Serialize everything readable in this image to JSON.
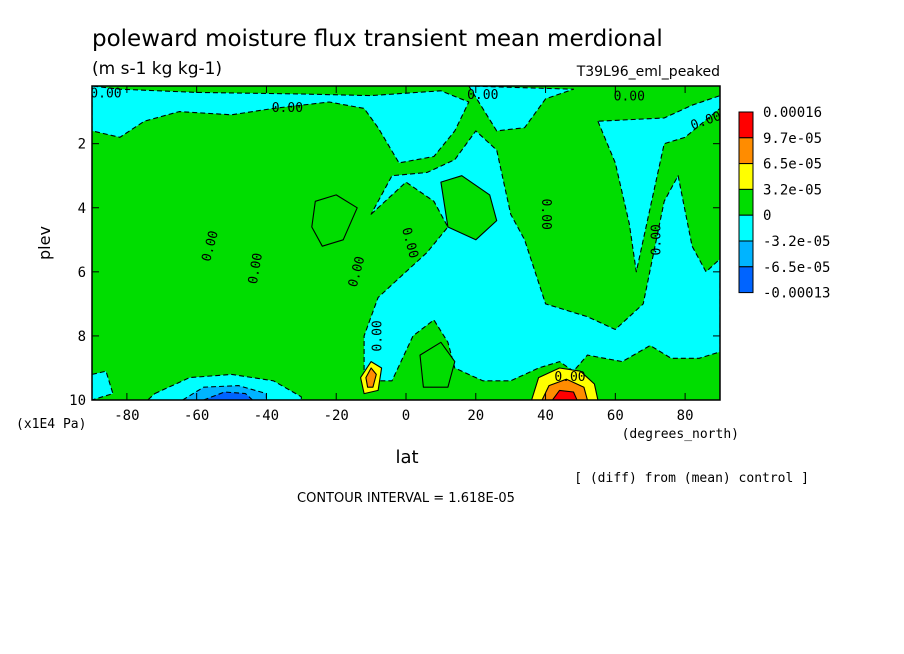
{
  "chart_data": {
    "type": "heatmap",
    "title": "poleward moisture flux transient mean merdional",
    "units": "(m s-1 kg kg-1)",
    "run_label": "T39L96_eml_peaked",
    "xlabel": "lat",
    "x_unit": "(degrees_north)",
    "ylabel": "plev",
    "y_unit": "(x1E4 Pa)",
    "xlim": [
      -90,
      90
    ],
    "ylim": [
      10,
      0.2
    ],
    "x_ticks": [
      -80,
      -60,
      -40,
      -20,
      0,
      20,
      40,
      60,
      80
    ],
    "x_tick_labels": [
      "-80",
      "-60",
      "-40",
      "-20",
      "0",
      "20",
      "40",
      "60",
      "80"
    ],
    "y_ticks": [
      2,
      4,
      6,
      8,
      10
    ],
    "y_tick_labels": [
      "2",
      "4",
      "6",
      "8",
      "10"
    ],
    "contour_label": "0.00",
    "colorbar": {
      "labels": [
        "0.00016",
        "9.7e-05",
        "6.5e-05",
        "3.2e-05",
        "0",
        "-3.2e-05",
        "-6.5e-05",
        "-0.00013"
      ],
      "colors": [
        "#ff0000",
        "#ff8c00",
        "#ffff00",
        "#00dd00",
        "#00ffff",
        "#00b4ff",
        "#0064ff"
      ]
    },
    "footnote": "[ (diff) from (mean) control ]",
    "contour_interval_text": "CONTOUR INTERVAL = 1.618E-05",
    "regions": [
      {
        "level": "pos1",
        "points": [
          [
            -90,
            0.2
          ],
          [
            90,
            0.2
          ],
          [
            90,
            10
          ],
          [
            -90,
            10
          ]
        ]
      },
      {
        "level": "neg1",
        "points": [
          [
            -90,
            0.2
          ],
          [
            -90,
            1.6
          ],
          [
            -82,
            1.8
          ],
          [
            -75,
            1.3
          ],
          [
            -65,
            1.0
          ],
          [
            -50,
            1.1
          ],
          [
            -38,
            0.9
          ],
          [
            -22,
            0.7
          ],
          [
            -12,
            0.9
          ],
          [
            -8,
            1.5
          ],
          [
            -2,
            2.6
          ],
          [
            8,
            2.4
          ],
          [
            14,
            1.6
          ],
          [
            18,
            0.7
          ],
          [
            10,
            0.35
          ],
          [
            -10,
            0.5
          ],
          [
            -30,
            0.45
          ],
          [
            -60,
            0.4
          ],
          [
            -82,
            0.3
          ]
        ]
      },
      {
        "level": "neg1",
        "points": [
          [
            18,
            0.2
          ],
          [
            26,
            1.6
          ],
          [
            34,
            1.5
          ],
          [
            40,
            0.6
          ],
          [
            48,
            0.3
          ]
        ]
      },
      {
        "level": "neg1",
        "points": [
          [
            55,
            1.3
          ],
          [
            60,
            2.6
          ],
          [
            64,
            4.5
          ],
          [
            66,
            6.0
          ],
          [
            70,
            4.0
          ],
          [
            74,
            2.0
          ],
          [
            80,
            1.8
          ],
          [
            90,
            0.9
          ],
          [
            90,
            0.5
          ],
          [
            82,
            0.8
          ],
          [
            74,
            1.2
          ]
        ]
      },
      {
        "level": "neg1",
        "points": [
          [
            -10,
            4.2
          ],
          [
            0,
            3.2
          ],
          [
            8,
            3.8
          ],
          [
            12,
            4.6
          ],
          [
            6,
            5.4
          ],
          [
            -2,
            6.2
          ],
          [
            -8,
            6.8
          ],
          [
            -12,
            8.0
          ],
          [
            -12,
            9.4
          ],
          [
            -4,
            9.4
          ],
          [
            2,
            8.0
          ],
          [
            8,
            7.5
          ],
          [
            12,
            8.2
          ],
          [
            14,
            9.0
          ],
          [
            22,
            9.4
          ],
          [
            30,
            9.4
          ],
          [
            38,
            9.0
          ],
          [
            44,
            8.8
          ],
          [
            48,
            9.1
          ],
          [
            52,
            8.6
          ],
          [
            62,
            8.8
          ],
          [
            70,
            8.3
          ],
          [
            76,
            8.7
          ],
          [
            84,
            8.7
          ],
          [
            90,
            8.5
          ],
          [
            90,
            5.6
          ],
          [
            86,
            6.0
          ],
          [
            82,
            5.2
          ],
          [
            78,
            3.0
          ],
          [
            74,
            3.8
          ],
          [
            68,
            7.0
          ],
          [
            60,
            7.8
          ],
          [
            52,
            7.4
          ],
          [
            40,
            7.0
          ],
          [
            34,
            5.0
          ],
          [
            30,
            4.2
          ],
          [
            26,
            2.2
          ],
          [
            20,
            1.6
          ],
          [
            14,
            2.5
          ],
          [
            6,
            2.9
          ],
          [
            -4,
            3.0
          ]
        ]
      },
      {
        "level": "pos1",
        "points": [
          [
            10,
            3.2
          ],
          [
            16,
            3.0
          ],
          [
            24,
            3.6
          ],
          [
            26,
            4.4
          ],
          [
            20,
            5.0
          ],
          [
            12,
            4.6
          ]
        ]
      },
      {
        "level": "pos1",
        "points": [
          [
            -26,
            3.8
          ],
          [
            -20,
            3.6
          ],
          [
            -14,
            4.0
          ],
          [
            -18,
            5.0
          ],
          [
            -24,
            5.2
          ],
          [
            -27,
            4.6
          ]
        ]
      },
      {
        "level": "pos1",
        "points": [
          [
            4,
            8.6
          ],
          [
            10,
            8.2
          ],
          [
            14,
            8.8
          ],
          [
            12,
            9.6
          ],
          [
            5,
            9.6
          ]
        ]
      },
      {
        "level": "neg1",
        "points": [
          [
            -72,
            9.8
          ],
          [
            -62,
            9.3
          ],
          [
            -50,
            9.2
          ],
          [
            -38,
            9.4
          ],
          [
            -30,
            9.9
          ],
          [
            -30,
            10
          ],
          [
            -74,
            10
          ]
        ]
      },
      {
        "level": "neg2",
        "points": [
          [
            -64,
            10
          ],
          [
            -58,
            9.6
          ],
          [
            -48,
            9.55
          ],
          [
            -40,
            9.8
          ],
          [
            -40,
            10
          ]
        ]
      },
      {
        "level": "neg3",
        "points": [
          [
            -58,
            10
          ],
          [
            -52,
            9.75
          ],
          [
            -46,
            9.8
          ],
          [
            -44,
            10
          ]
        ]
      },
      {
        "level": "neg1",
        "points": [
          [
            -90,
            9.2
          ],
          [
            -86,
            9.1
          ],
          [
            -84,
            9.8
          ],
          [
            -90,
            10
          ]
        ]
      },
      {
        "level": "pos2",
        "points": [
          [
            -13,
            9.3
          ],
          [
            -10,
            8.8
          ],
          [
            -7,
            9.0
          ],
          [
            -8,
            9.7
          ],
          [
            -12,
            9.8
          ]
        ]
      },
      {
        "level": "pos3",
        "points": [
          [
            -11.5,
            9.3
          ],
          [
            -10,
            9.0
          ],
          [
            -8.5,
            9.2
          ],
          [
            -9.5,
            9.6
          ],
          [
            -11,
            9.6
          ]
        ]
      },
      {
        "level": "pos2",
        "points": [
          [
            36,
            10
          ],
          [
            38,
            9.3
          ],
          [
            44,
            9.0
          ],
          [
            50,
            9.1
          ],
          [
            54,
            9.5
          ],
          [
            55,
            10
          ]
        ]
      },
      {
        "level": "pos3",
        "points": [
          [
            39,
            10
          ],
          [
            41,
            9.55
          ],
          [
            46,
            9.35
          ],
          [
            51,
            9.6
          ],
          [
            52,
            10
          ]
        ]
      },
      {
        "level": "pos4",
        "points": [
          [
            42,
            10
          ],
          [
            44,
            9.7
          ],
          [
            48,
            9.75
          ],
          [
            49,
            10
          ]
        ]
      }
    ],
    "contour_label_positions": [
      {
        "lat": -86,
        "plev": 0.45,
        "angle": 0
      },
      {
        "lat": -34,
        "plev": 0.9,
        "angle": 0
      },
      {
        "lat": 22,
        "plev": 0.5,
        "angle": 0
      },
      {
        "lat": 64,
        "plev": 0.55,
        "angle": 0
      },
      {
        "lat": 86,
        "plev": 1.3,
        "angle": -20
      },
      {
        "lat": -56,
        "plev": 5.2,
        "angle": -75
      },
      {
        "lat": -43,
        "plev": 5.9,
        "angle": -80
      },
      {
        "lat": -14,
        "plev": 6.0,
        "angle": -75
      },
      {
        "lat": -8,
        "plev": 8.0,
        "angle": -90
      },
      {
        "lat": 1,
        "plev": 5.1,
        "angle": 75
      },
      {
        "lat": 40,
        "plev": 4.2,
        "angle": 90
      },
      {
        "lat": 72,
        "plev": 5.0,
        "angle": -90
      },
      {
        "lat": 47,
        "plev": 9.3,
        "angle": 0
      }
    ]
  }
}
